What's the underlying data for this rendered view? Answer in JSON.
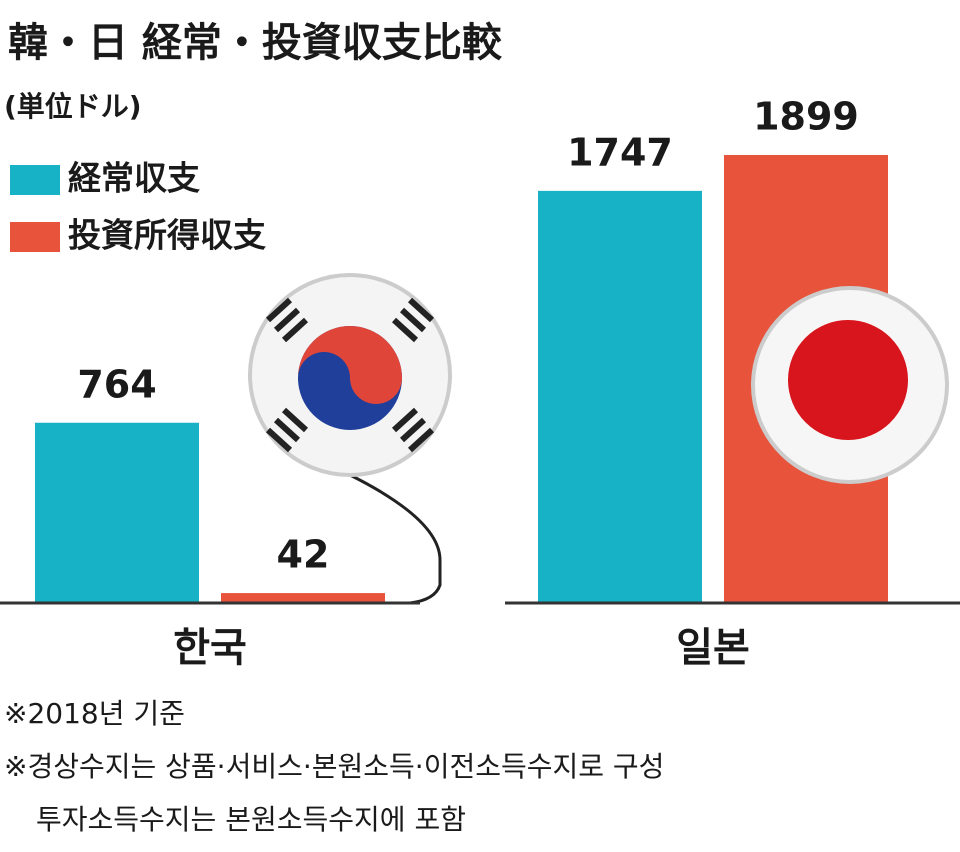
{
  "chart_data": {
    "type": "bar",
    "title": "韓・日 経常・投資収支比較",
    "subtitle": "(単位ドル)",
    "categories": [
      "한국",
      "일본"
    ],
    "series": [
      {
        "name": "経常収支",
        "color": "#17b2c6",
        "values": [
          764,
          1747
        ]
      },
      {
        "name": "投資所得収支",
        "color": "#e8533c",
        "values": [
          42,
          1899
        ]
      }
    ],
    "notes": [
      "※2018년 기준",
      "※경상수지는 상품·서비스·본원소득·이전소득수지로 구성",
      "투자소득수지는 본원소득수지에 포함"
    ]
  }
}
